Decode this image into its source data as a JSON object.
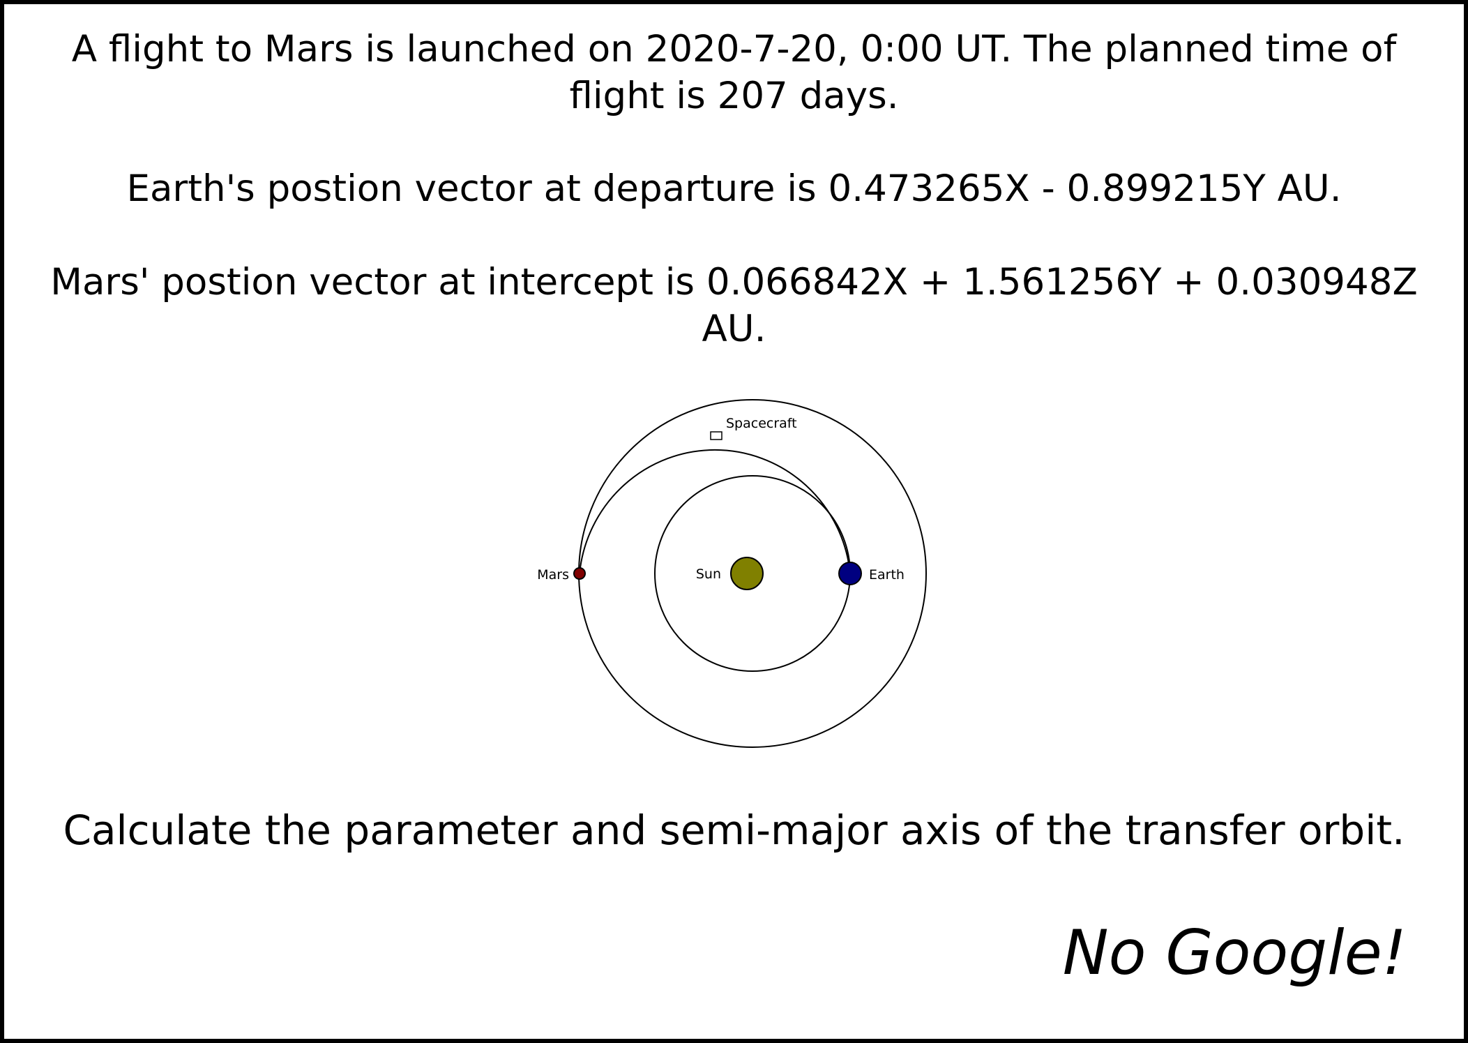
{
  "problem": {
    "launch_text": "A flight to Mars is launched on 2020-7-20, 0:00 UT. The planned time of flight is 207 days.",
    "earth_position_text": "Earth's postion vector at departure is 0.473265X - 0.899215Y AU.",
    "mars_position_text": "Mars' postion vector at intercept is 0.066842X + 1.561256Y + 0.030948Z AU.",
    "question_text": "Calculate the parameter and semi-major axis of the transfer orbit.",
    "motto_text": "No Google!"
  },
  "diagram": {
    "labels": {
      "sun": "Sun",
      "earth": "Earth",
      "mars": "Mars",
      "spacecraft": "Spacecraft"
    },
    "colors": {
      "sun": "#808000",
      "earth": "#000080",
      "mars": "#800000",
      "spacecraft": "#ffffff",
      "orbit_lines": "#000000"
    }
  }
}
